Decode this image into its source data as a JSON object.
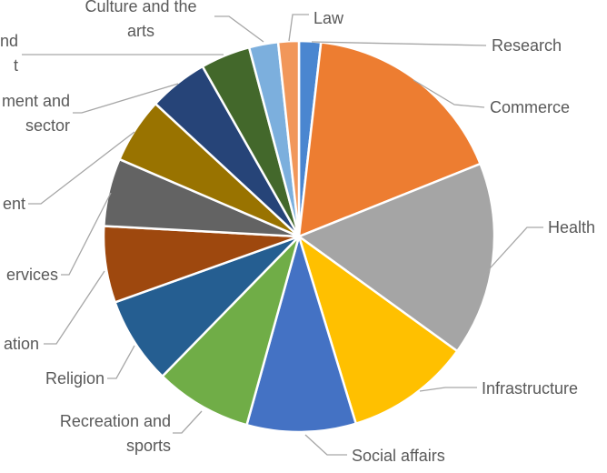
{
  "chart_data": {
    "type": "pie",
    "title": "",
    "start_angle": "12 o'clock, clockwise",
    "legend": "none (data labels with leader lines)",
    "slices": [
      {
        "label": "Research",
        "value": 1.8,
        "color": "#4A86D0"
      },
      {
        "label": "Commerce",
        "value": 17.1,
        "color": "#ED7D31"
      },
      {
        "label": "Health",
        "value": 16.0,
        "color": "#A5A5A5"
      },
      {
        "label": "Infrastructure",
        "value": 10.3,
        "color": "#FFC000"
      },
      {
        "label": "Social affairs",
        "value": 9.0,
        "color": "#4472C4"
      },
      {
        "label": "Recreation and sports",
        "lines": [
          "Recreation and",
          "sports"
        ],
        "value": 8.0,
        "color": "#70AD47"
      },
      {
        "label": "Religion",
        "value": 7.2,
        "color": "#255E91"
      },
      {
        "label": "ation",
        "value": 6.3,
        "color": "#9E480E"
      },
      {
        "label": "ervices",
        "value": 5.6,
        "color": "#636363"
      },
      {
        "label": "ent",
        "value": 5.4,
        "color": "#997300"
      },
      {
        "label": "ment and sector",
        "lines": [
          "ment and",
          "sector"
        ],
        "value": 4.9,
        "color": "#264478"
      },
      {
        "label": "nd t",
        "lines": [
          "nd",
          "t"
        ],
        "value": 4.1,
        "color": "#43682B"
      },
      {
        "label": "Culture and the arts",
        "lines": [
          "Culture and the",
          "arts"
        ],
        "value": 2.4,
        "color": "#7CAFDD"
      },
      {
        "label": "Law",
        "value": 1.7,
        "color": "#F1975A"
      }
    ]
  }
}
